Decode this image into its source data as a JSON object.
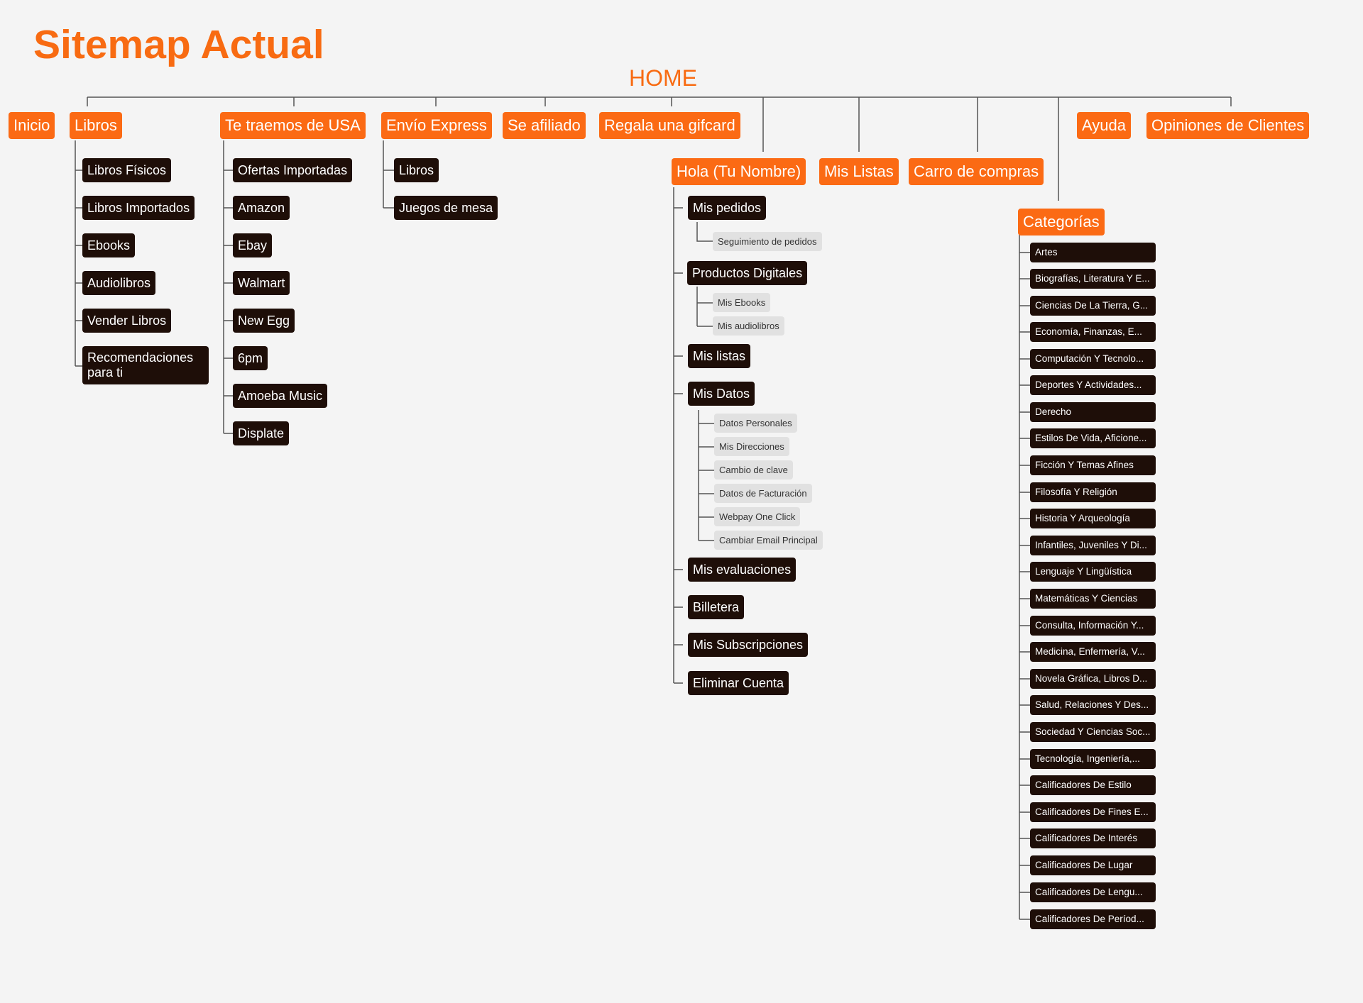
{
  "title": "Sitemap Actual",
  "root": "HOME",
  "colors": {
    "accent": "#fb6a14",
    "dark": "#1e0e08",
    "light": "#e1e1e1",
    "line": "#555555"
  },
  "top": {
    "inicio": "Inicio",
    "libros": "Libros",
    "usa": "Te traemos de USA",
    "express": "Envío Express",
    "afiliado": "Se afiliado",
    "gifcard": "Regala una gifcard",
    "hola": "Hola (Tu Nombre)",
    "listas": "Mis Listas",
    "carro": "Carro de compras",
    "categorias": "Categorías",
    "ayuda": "Ayuda",
    "opiniones": "Opiniones de Clientes"
  },
  "libros": [
    "Libros Físicos",
    "Libros Importados",
    "Ebooks",
    "Audiolibros",
    "Vender Libros",
    "Recomendaciones para ti"
  ],
  "usa": [
    "Ofertas Importadas",
    "Amazon",
    "Ebay",
    "Walmart",
    "New Egg",
    "6pm",
    "Amoeba Music",
    "Displate"
  ],
  "express": [
    "Libros",
    "Juegos de mesa"
  ],
  "hola": {
    "pedidos": "Mis pedidos",
    "seguimiento": "Seguimiento de pedidos",
    "digitales": "Productos Digitales",
    "ebooks": "Mis Ebooks",
    "audiolibros": "Mis audiolibros",
    "listas": "Mis listas",
    "datos": "Mis Datos",
    "datos_items": [
      "Datos Personales",
      "Mis Direcciones",
      "Cambio de clave",
      "Datos de Facturación",
      "Webpay One Click",
      "Cambiar Email Principal"
    ],
    "evaluaciones": "Mis evaluaciones",
    "billetera": "Billetera",
    "subscripciones": "Mis Subscripciones",
    "eliminar": "Eliminar Cuenta"
  },
  "categorias": [
    "Artes",
    "Biografías, Literatura Y E...",
    "Ciencias De La Tierra, G...",
    "Economía, Finanzas, E...",
    "Computación Y Tecnolo...",
    "Deportes Y Actividades...",
    "Derecho",
    "Estilos De Vida, Aficione...",
    "Ficción Y Temas Afines",
    "Filosofía Y Religión",
    "Historia Y Arqueología",
    "Infantiles, Juveniles Y Di...",
    "Lenguaje Y Lingüística",
    "Matemáticas Y Ciencias",
    "Consulta, Información Y...",
    "Medicina, Enfermería, V...",
    "Novela Gráfica, Libros D...",
    "Salud, Relaciones Y Des...",
    "Sociedad Y Ciencias Soc...",
    "Tecnología, Ingeniería,...",
    "Calificadores De Estilo",
    "Calificadores De Fines E...",
    "Calificadores De Interés",
    "Calificadores De Lugar",
    "Calificadores De Lengu...",
    "Calificadores De Períod..."
  ]
}
